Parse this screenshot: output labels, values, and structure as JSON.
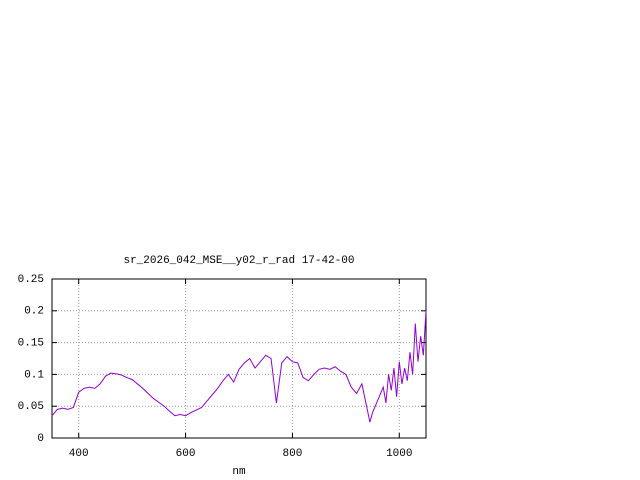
{
  "chart_data": {
    "type": "line",
    "title": "sr_2026_042_MSE__y02_r_rad 17-42-00",
    "x_label": "nm",
    "x": [
      350,
      360,
      370,
      380,
      390,
      400,
      410,
      420,
      430,
      440,
      450,
      460,
      470,
      480,
      490,
      500,
      510,
      520,
      530,
      540,
      550,
      560,
      570,
      580,
      590,
      600,
      610,
      620,
      630,
      640,
      650,
      660,
      670,
      680,
      690,
      700,
      710,
      720,
      730,
      740,
      750,
      760,
      770,
      780,
      790,
      800,
      810,
      820,
      830,
      840,
      850,
      860,
      870,
      880,
      890,
      900,
      910,
      920,
      930,
      940,
      945,
      950,
      960,
      970,
      975,
      980,
      985,
      990,
      995,
      1000,
      1005,
      1010,
      1015,
      1020,
      1025,
      1030,
      1035,
      1040,
      1045,
      1050
    ],
    "series": [
      {
        "color": "#9400d3",
        "values": [
          0.035,
          0.045,
          0.047,
          0.045,
          0.048,
          0.072,
          0.078,
          0.08,
          0.078,
          0.085,
          0.097,
          0.102,
          0.101,
          0.099,
          0.095,
          0.092,
          0.085,
          0.078,
          0.07,
          0.062,
          0.056,
          0.05,
          0.042,
          0.035,
          0.037,
          0.035,
          0.04,
          0.044,
          0.048,
          0.058,
          0.068,
          0.078,
          0.09,
          0.1,
          0.088,
          0.108,
          0.118,
          0.125,
          0.11,
          0.12,
          0.13,
          0.125,
          0.055,
          0.118,
          0.128,
          0.12,
          0.118,
          0.095,
          0.09,
          0.1,
          0.108,
          0.11,
          0.108,
          0.112,
          0.105,
          0.1,
          0.08,
          0.07,
          0.085,
          0.045,
          0.025,
          0.04,
          0.06,
          0.08,
          0.055,
          0.1,
          0.075,
          0.11,
          0.065,
          0.12,
          0.085,
          0.11,
          0.09,
          0.135,
          0.1,
          0.18,
          0.12,
          0.16,
          0.13,
          0.2
        ]
      }
    ],
    "xlim": [
      350,
      1050
    ],
    "ylim": [
      0,
      0.25
    ],
    "xticks": [
      400,
      600,
      800,
      1000
    ],
    "yticks": [
      0,
      0.05,
      0.1,
      0.15,
      0.2,
      0.25
    ],
    "grid": true
  }
}
